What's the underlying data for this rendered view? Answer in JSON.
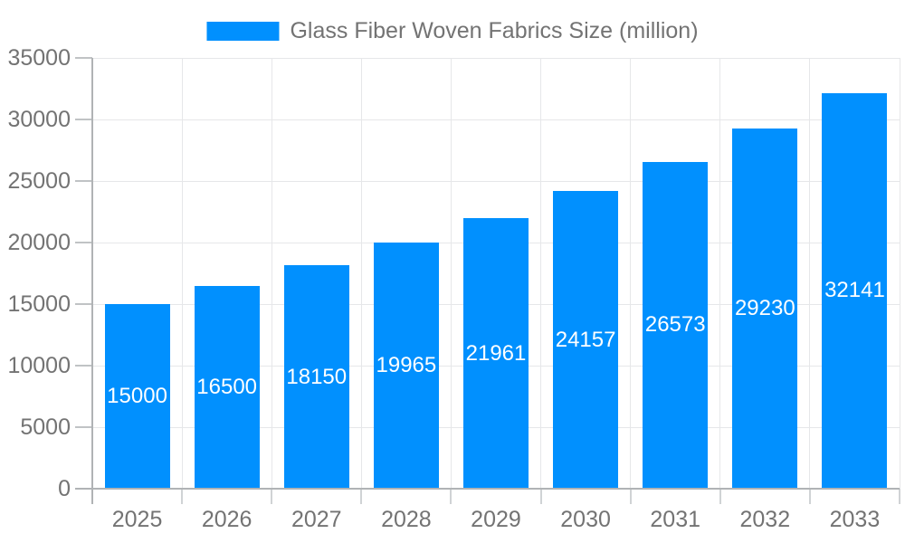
{
  "chart_data": {
    "type": "bar",
    "title": "Glass Fiber Woven Fabrics Size (million)",
    "legend": {
      "label": "Glass Fiber Woven Fabrics Size (million)",
      "position": "top"
    },
    "categories": [
      "2025",
      "2026",
      "2027",
      "2028",
      "2029",
      "2030",
      "2031",
      "2032",
      "2033"
    ],
    "series": [
      {
        "name": "Glass Fiber Woven Fabrics Size (million)",
        "values": [
          15000,
          16500,
          18150,
          19965,
          21961,
          24157,
          26573,
          29230,
          32141
        ]
      }
    ],
    "bar_value_labels": [
      "15000",
      "16500",
      "18150",
      "19965",
      "21961",
      "24157",
      "26573",
      "29230",
      "32141"
    ],
    "xlabel": "",
    "ylabel": "",
    "ylim": [
      0,
      35000
    ],
    "ytick_step": 5000,
    "ytick_labels": [
      "0",
      "5000",
      "10000",
      "15000",
      "20000",
      "25000",
      "30000",
      "35000"
    ],
    "grid": true,
    "colors": {
      "bar": "#0190fe",
      "bar_value_text": "#ffffff",
      "axis_text": "#737373",
      "grid_line": "#e6e7e9",
      "axis_line": "#b0b3b5",
      "y_tick": "#c0c3c5",
      "x_tick": "#d0d3d5",
      "background": "#ffffff"
    }
  }
}
